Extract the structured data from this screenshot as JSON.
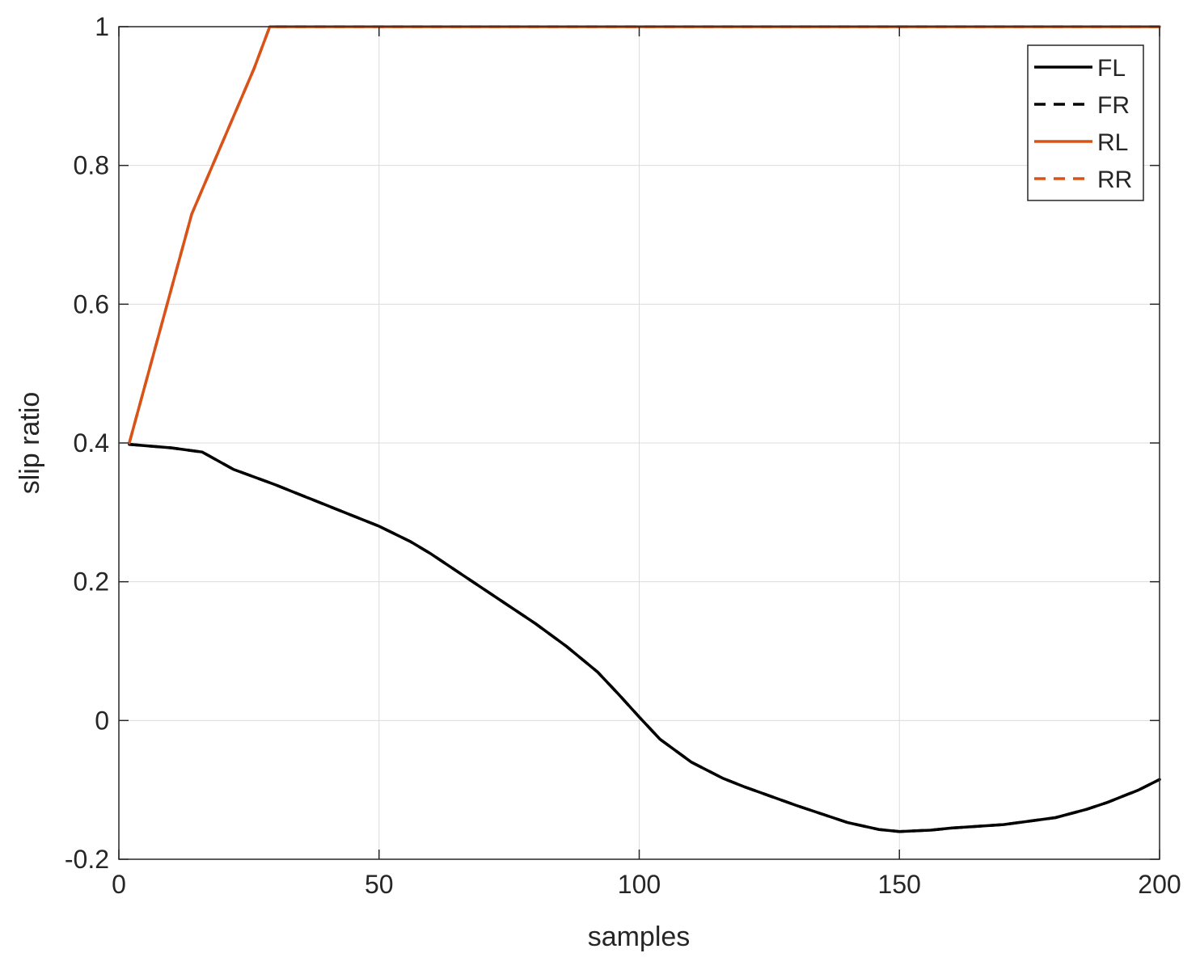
{
  "chart_data": {
    "type": "line",
    "title": "",
    "xlabel": "samples",
    "ylabel": "slip ratio",
    "xlim": [
      0,
      200
    ],
    "ylim": [
      -0.2,
      1
    ],
    "xticks": [
      0,
      50,
      100,
      150,
      200
    ],
    "xtick_labels": [
      "0",
      "50",
      "100",
      "150",
      "200"
    ],
    "yticks": [
      -0.2,
      0,
      0.2,
      0.4,
      0.6,
      0.8,
      1
    ],
    "ytick_labels": [
      "-0.2",
      "0",
      "0.2",
      "0.4",
      "0.6",
      "0.8",
      "1"
    ],
    "grid": true,
    "legend_position": "top-right",
    "series": [
      {
        "name": "FL",
        "color": "#000000",
        "line_style": "solid",
        "x": [
          2,
          10,
          16,
          22,
          30,
          40,
          50,
          56,
          60,
          70,
          80,
          86,
          92,
          96,
          100,
          104,
          110,
          116,
          120,
          130,
          140,
          146,
          150,
          156,
          160,
          170,
          180,
          186,
          190,
          196,
          200
        ],
        "y": [
          0.398,
          0.393,
          0.387,
          0.362,
          0.34,
          0.31,
          0.28,
          0.258,
          0.24,
          0.19,
          0.14,
          0.107,
          0.07,
          0.038,
          0.005,
          -0.027,
          -0.06,
          -0.083,
          -0.095,
          -0.122,
          -0.147,
          -0.157,
          -0.16,
          -0.158,
          -0.155,
          -0.15,
          -0.14,
          -0.128,
          -0.118,
          -0.1,
          -0.085
        ]
      },
      {
        "name": "FR",
        "color": "#000000",
        "line_style": "dashed",
        "x": [
          2,
          10,
          16,
          22,
          30,
          40,
          50,
          56,
          60,
          70,
          80,
          86,
          92,
          96,
          100,
          104,
          110,
          116,
          120,
          130,
          140,
          146,
          150,
          156,
          160,
          170,
          180,
          186,
          190,
          196,
          200
        ],
        "y": [
          0.398,
          0.393,
          0.387,
          0.362,
          0.34,
          0.31,
          0.28,
          0.258,
          0.24,
          0.19,
          0.14,
          0.107,
          0.07,
          0.038,
          0.005,
          -0.027,
          -0.06,
          -0.083,
          -0.095,
          -0.122,
          -0.147,
          -0.157,
          -0.16,
          -0.158,
          -0.155,
          -0.15,
          -0.14,
          -0.128,
          -0.118,
          -0.1,
          -0.085
        ]
      },
      {
        "name": "RL",
        "color": "#D95319",
        "line_style": "solid",
        "x": [
          2,
          8,
          14,
          18,
          22,
          26,
          29,
          200
        ],
        "y": [
          0.4,
          0.565,
          0.73,
          0.8,
          0.87,
          0.94,
          1.0,
          1.0
        ]
      },
      {
        "name": "RR",
        "color": "#D95319",
        "line_style": "dashed",
        "x": [
          2,
          8,
          14,
          18,
          22,
          26,
          29,
          200
        ],
        "y": [
          0.4,
          0.565,
          0.73,
          0.8,
          0.87,
          0.94,
          1.0,
          1.0
        ]
      }
    ]
  }
}
